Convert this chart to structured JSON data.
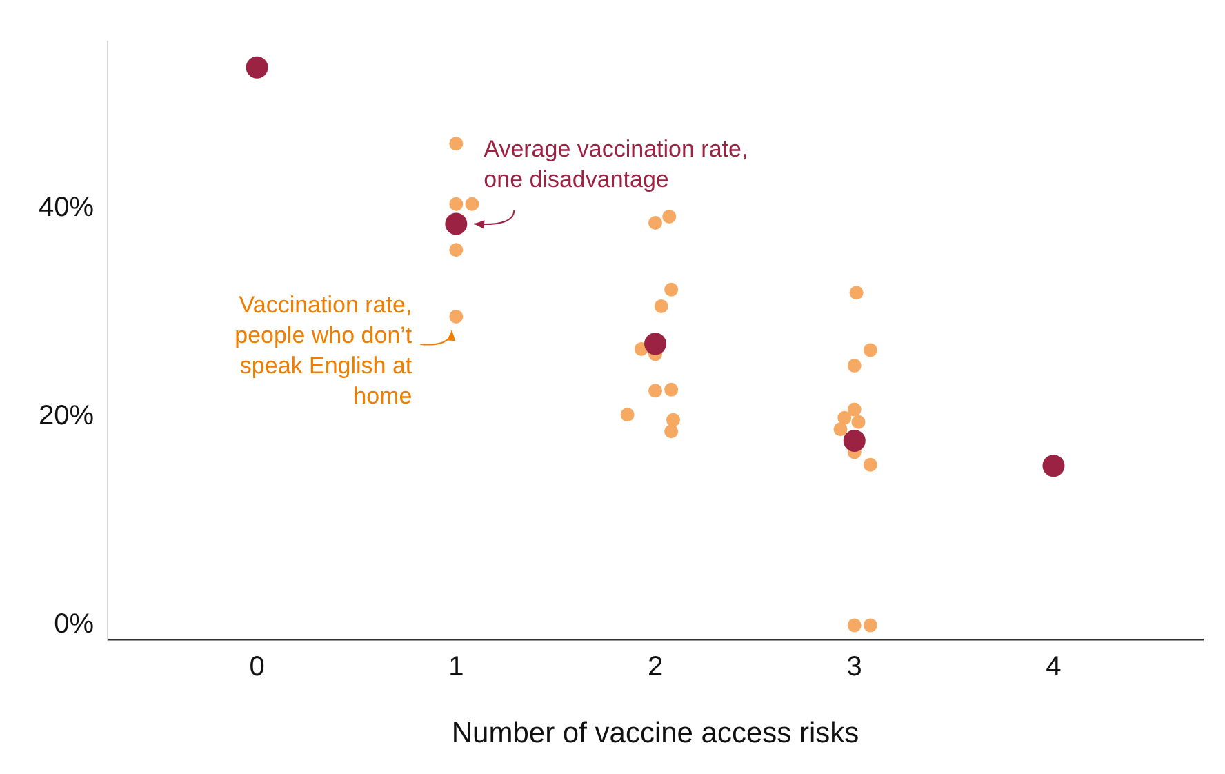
{
  "chart_data": {
    "type": "scatter",
    "xlabel": "Number of vaccine access risks",
    "xlim": [
      -0.75,
      4.75
    ],
    "xticks": [
      0,
      1,
      2,
      3,
      4
    ],
    "ylim": [
      -1.4,
      56
    ],
    "yticks": [
      {
        "value": 0,
        "label": "0%"
      },
      {
        "value": 20,
        "label": "20%"
      },
      {
        "value": 40,
        "label": "40%"
      }
    ],
    "grid": false,
    "legend": false,
    "marker": "circle",
    "series": [
      {
        "color": "#f5a962",
        "x": [
          1,
          1,
          1.08,
          1,
          1,
          2,
          2.07,
          2.08,
          2.03,
          1.93,
          2,
          2,
          2.08,
          1.86,
          2.09,
          2.08,
          3.01,
          3.08,
          3,
          3,
          2.95,
          3.02,
          2.93,
          3,
          3.08,
          3,
          3.08
        ],
        "values": [
          46.2,
          40.4,
          40.4,
          36.0,
          29.6,
          38.6,
          39.2,
          32.2,
          30.6,
          26.5,
          26.0,
          22.5,
          22.6,
          20.2,
          19.7,
          18.6,
          31.9,
          26.4,
          24.9,
          20.7,
          19.9,
          19.5,
          18.8,
          16.6,
          15.4,
          0,
          0
        ]
      },
      {
        "color": "#9b2242",
        "x": [
          0,
          1,
          2,
          3,
          4
        ],
        "values": [
          53.5,
          38.5,
          27.0,
          17.7,
          15.3
        ]
      }
    ],
    "annotations": [
      {
        "text": "Average vaccination rate,\none disadvantage",
        "x": 1,
        "y": 38.5
      },
      {
        "text": "Vaccination rate,\npeople who don’t\nspeak English at\nhome",
        "x": 1,
        "y": 29.6
      }
    ]
  }
}
